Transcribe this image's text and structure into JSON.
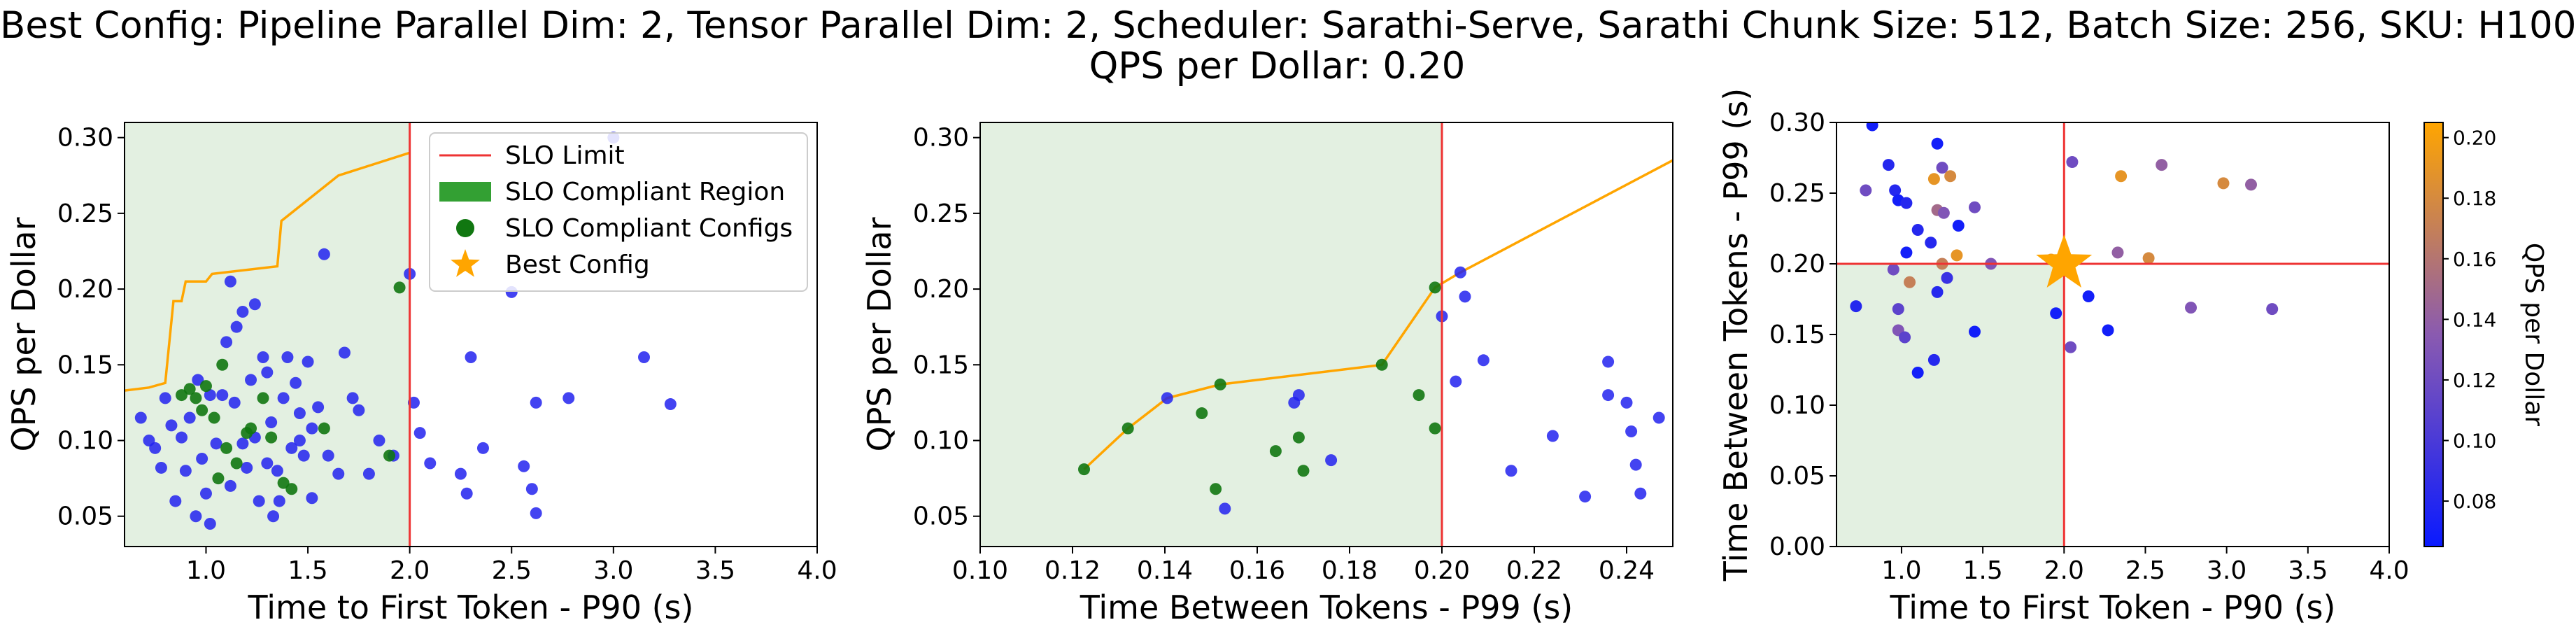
{
  "title": {
    "line1": "Best Config: Pipeline Parallel Dim: 2, Tensor Parallel Dim: 2, Scheduler: Sarathi-Serve, Sarathi Chunk Size: 512, Batch Size: 256, SKU: H100",
    "line2": "QPS per Dollar: 0.20"
  },
  "colors": {
    "slo_line": "#ee3333",
    "region": "#e3f0e1",
    "compliant": "#117711",
    "noncompliant": "#2222ee",
    "frontier": "#ffa500",
    "best": "#ffa500"
  },
  "chart_data": [
    {
      "type": "scatter",
      "xlabel": "Time to First Token - P90 (s)",
      "ylabel": "QPS per Dollar",
      "xlim": [
        0.6,
        4.0
      ],
      "ylim": [
        0.03,
        0.31
      ],
      "xticks": [
        "1.0",
        "1.5",
        "2.0",
        "2.5",
        "3.0",
        "3.5",
        "4.0"
      ],
      "xtick_values": [
        1.0,
        1.5,
        2.0,
        2.5,
        3.0,
        3.5,
        4.0
      ],
      "yticks": [
        "0.05",
        "0.10",
        "0.15",
        "0.20",
        "0.25",
        "0.30"
      ],
      "ytick_values": [
        0.05,
        0.1,
        0.15,
        0.2,
        0.25,
        0.3
      ],
      "slo_limit_x": 2.0,
      "legend": {
        "position": "upper-center",
        "entries": [
          "SLO Limit",
          "SLO Compliant Region",
          "SLO Compliant Configs",
          "Best Config"
        ]
      },
      "frontier": [
        [
          0.6,
          0.133
        ],
        [
          0.72,
          0.135
        ],
        [
          0.8,
          0.138
        ],
        [
          0.84,
          0.192
        ],
        [
          0.88,
          0.192
        ],
        [
          0.9,
          0.205
        ],
        [
          1.0,
          0.205
        ],
        [
          1.03,
          0.21
        ],
        [
          1.35,
          0.215
        ],
        [
          1.37,
          0.245
        ],
        [
          1.65,
          0.275
        ],
        [
          2.0,
          0.29
        ]
      ],
      "compliant": [
        [
          0.88,
          0.13
        ],
        [
          0.92,
          0.134
        ],
        [
          0.95,
          0.128
        ],
        [
          0.98,
          0.12
        ],
        [
          1.0,
          0.136
        ],
        [
          1.04,
          0.115
        ],
        [
          1.08,
          0.15
        ],
        [
          1.1,
          0.095
        ],
        [
          1.15,
          0.085
        ],
        [
          1.22,
          0.108
        ],
        [
          1.28,
          0.128
        ],
        [
          1.32,
          0.102
        ],
        [
          1.38,
          0.072
        ],
        [
          1.42,
          0.068
        ],
        [
          1.58,
          0.108
        ],
        [
          1.95,
          0.201
        ],
        [
          1.9,
          0.09
        ],
        [
          1.2,
          0.105
        ],
        [
          1.06,
          0.075
        ]
      ],
      "noncompliant": [
        [
          0.68,
          0.115
        ],
        [
          0.72,
          0.1
        ],
        [
          0.75,
          0.095
        ],
        [
          0.78,
          0.082
        ],
        [
          0.8,
          0.128
        ],
        [
          0.83,
          0.11
        ],
        [
          0.85,
          0.06
        ],
        [
          0.88,
          0.102
        ],
        [
          0.9,
          0.08
        ],
        [
          0.92,
          0.115
        ],
        [
          0.95,
          0.05
        ],
        [
          0.98,
          0.088
        ],
        [
          1.0,
          0.065
        ],
        [
          1.02,
          0.045
        ],
        [
          1.05,
          0.098
        ],
        [
          1.08,
          0.13
        ],
        [
          1.1,
          0.165
        ],
        [
          1.12,
          0.07
        ],
        [
          1.14,
          0.125
        ],
        [
          1.15,
          0.175
        ],
        [
          1.18,
          0.098
        ],
        [
          1.2,
          0.082
        ],
        [
          1.22,
          0.14
        ],
        [
          1.24,
          0.19
        ],
        [
          1.26,
          0.06
        ],
        [
          1.28,
          0.155
        ],
        [
          1.3,
          0.145
        ],
        [
          1.32,
          0.112
        ],
        [
          1.33,
          0.05
        ],
        [
          1.35,
          0.08
        ],
        [
          1.38,
          0.128
        ],
        [
          1.4,
          0.155
        ],
        [
          1.42,
          0.095
        ],
        [
          1.44,
          0.138
        ],
        [
          1.46,
          0.118
        ],
        [
          1.48,
          0.09
        ],
        [
          1.5,
          0.152
        ],
        [
          1.52,
          0.062
        ],
        [
          1.55,
          0.122
        ],
        [
          1.58,
          0.223
        ],
        [
          1.6,
          0.09
        ],
        [
          1.65,
          0.078
        ],
        [
          1.68,
          0.158
        ],
        [
          1.72,
          0.128
        ],
        [
          1.75,
          0.12
        ],
        [
          1.8,
          0.078
        ],
        [
          1.85,
          0.1
        ],
        [
          1.92,
          0.09
        ],
        [
          2.0,
          0.21
        ],
        [
          2.02,
          0.125
        ],
        [
          2.05,
          0.105
        ],
        [
          2.1,
          0.085
        ],
        [
          2.25,
          0.078
        ],
        [
          2.28,
          0.065
        ],
        [
          2.3,
          0.155
        ],
        [
          2.36,
          0.095
        ],
        [
          2.5,
          0.198
        ],
        [
          2.56,
          0.083
        ],
        [
          2.6,
          0.068
        ],
        [
          2.62,
          0.052
        ],
        [
          2.62,
          0.125
        ],
        [
          2.78,
          0.128
        ],
        [
          3.0,
          0.3
        ],
        [
          3.15,
          0.155
        ],
        [
          3.28,
          0.124
        ],
        [
          0.96,
          0.14
        ],
        [
          1.12,
          0.205
        ],
        [
          1.18,
          0.185
        ],
        [
          1.24,
          0.102
        ],
        [
          1.3,
          0.085
        ],
        [
          1.36,
          0.06
        ],
        [
          1.46,
          0.1
        ],
        [
          1.52,
          0.108
        ],
        [
          1.02,
          0.13
        ]
      ],
      "best": [
        2.0,
        0.2
      ]
    },
    {
      "type": "scatter",
      "xlabel": "Time Between Tokens - P99 (s)",
      "ylabel": "QPS per Dollar",
      "xlim": [
        0.1,
        0.25
      ],
      "ylim": [
        0.03,
        0.31
      ],
      "xticks": [
        "0.10",
        "0.12",
        "0.14",
        "0.16",
        "0.18",
        "0.20",
        "0.22",
        "0.24"
      ],
      "xtick_values": [
        0.1,
        0.12,
        0.14,
        0.16,
        0.18,
        0.2,
        0.22,
        0.24
      ],
      "yticks": [
        "0.05",
        "0.10",
        "0.15",
        "0.20",
        "0.25",
        "0.30"
      ],
      "ytick_values": [
        0.05,
        0.1,
        0.15,
        0.2,
        0.25,
        0.3
      ],
      "slo_limit_x": 0.2,
      "frontier": [
        [
          0.1225,
          0.081
        ],
        [
          0.132,
          0.108
        ],
        [
          0.1405,
          0.128
        ],
        [
          0.152,
          0.137
        ],
        [
          0.187,
          0.15
        ],
        [
          0.1985,
          0.201
        ],
        [
          0.204,
          0.211
        ],
        [
          0.25,
          0.285
        ]
      ],
      "compliant": [
        [
          0.1225,
          0.081
        ],
        [
          0.132,
          0.108
        ],
        [
          0.148,
          0.118
        ],
        [
          0.151,
          0.068
        ],
        [
          0.152,
          0.137
        ],
        [
          0.164,
          0.093
        ],
        [
          0.169,
          0.102
        ],
        [
          0.17,
          0.08
        ],
        [
          0.187,
          0.15
        ],
        [
          0.195,
          0.13
        ],
        [
          0.1985,
          0.201
        ],
        [
          0.1985,
          0.108
        ]
      ],
      "noncompliant": [
        [
          0.1405,
          0.128
        ],
        [
          0.153,
          0.055
        ],
        [
          0.168,
          0.125
        ],
        [
          0.169,
          0.13
        ],
        [
          0.176,
          0.087
        ],
        [
          0.2,
          0.182
        ],
        [
          0.203,
          0.139
        ],
        [
          0.204,
          0.211
        ],
        [
          0.205,
          0.195
        ],
        [
          0.209,
          0.153
        ],
        [
          0.215,
          0.08
        ],
        [
          0.224,
          0.103
        ],
        [
          0.231,
          0.063
        ],
        [
          0.236,
          0.152
        ],
        [
          0.236,
          0.13
        ],
        [
          0.24,
          0.125
        ],
        [
          0.241,
          0.106
        ],
        [
          0.242,
          0.084
        ],
        [
          0.243,
          0.065
        ],
        [
          0.247,
          0.115
        ]
      ],
      "best": [
        0.2,
        0.2
      ]
    },
    {
      "type": "scatter",
      "xlabel": "Time to First Token - P90 (s)",
      "ylabel": "Time Between Tokens - P99 (s)",
      "xlim": [
        0.6,
        4.0
      ],
      "ylim": [
        0.0,
        0.3
      ],
      "xticks": [
        "1.0",
        "1.5",
        "2.0",
        "2.5",
        "3.0",
        "3.5",
        "4.0"
      ],
      "xtick_values": [
        1.0,
        1.5,
        2.0,
        2.5,
        3.0,
        3.5,
        4.0
      ],
      "yticks": [
        "0.00",
        "0.05",
        "0.10",
        "0.15",
        "0.20",
        "0.25",
        "0.30"
      ],
      "ytick_values": [
        0.0,
        0.05,
        0.1,
        0.15,
        0.2,
        0.25,
        0.3
      ],
      "slo_limit_x": 2.0,
      "slo_limit_y": 0.2,
      "colorbar": {
        "label": "QPS per Dollar",
        "range": [
          0.065,
          0.205
        ],
        "ticks": [
          "0.08",
          "0.10",
          "0.12",
          "0.14",
          "0.16",
          "0.18",
          "0.20"
        ],
        "tick_values": [
          0.08,
          0.1,
          0.12,
          0.14,
          0.16,
          0.18,
          0.2
        ]
      },
      "points": [
        [
          0.82,
          0.298,
          0.07
        ],
        [
          0.92,
          0.27,
          0.08
        ],
        [
          0.78,
          0.252,
          0.12
        ],
        [
          0.96,
          0.252,
          0.08
        ],
        [
          0.98,
          0.245,
          0.07
        ],
        [
          1.03,
          0.243,
          0.08
        ],
        [
          1.22,
          0.285,
          0.07
        ],
        [
          1.25,
          0.268,
          0.12
        ],
        [
          1.2,
          0.26,
          0.19
        ],
        [
          1.3,
          0.262,
          0.18
        ],
        [
          1.22,
          0.238,
          0.15
        ],
        [
          1.26,
          0.236,
          0.13
        ],
        [
          1.45,
          0.24,
          0.12
        ],
        [
          1.35,
          0.227,
          0.07
        ],
        [
          1.1,
          0.224,
          0.08
        ],
        [
          1.18,
          0.215,
          0.08
        ],
        [
          1.34,
          0.206,
          0.19
        ],
        [
          1.25,
          0.2,
          0.17
        ],
        [
          1.55,
          0.2,
          0.13
        ],
        [
          1.92,
          0.203,
          0.19
        ],
        [
          2.05,
          0.272,
          0.12
        ],
        [
          2.35,
          0.262,
          0.19
        ],
        [
          2.6,
          0.27,
          0.14
        ],
        [
          2.98,
          0.257,
          0.18
        ],
        [
          3.15,
          0.256,
          0.14
        ],
        [
          2.33,
          0.208,
          0.14
        ],
        [
          2.52,
          0.204,
          0.18
        ],
        [
          0.95,
          0.196,
          0.12
        ],
        [
          1.05,
          0.187,
          0.17
        ],
        [
          1.22,
          0.18,
          0.08
        ],
        [
          2.15,
          0.177,
          0.07
        ],
        [
          0.72,
          0.17,
          0.08
        ],
        [
          0.98,
          0.168,
          0.11
        ],
        [
          2.78,
          0.169,
          0.13
        ],
        [
          3.28,
          0.168,
          0.12
        ],
        [
          1.95,
          0.165,
          0.07
        ],
        [
          0.98,
          0.153,
          0.13
        ],
        [
          1.02,
          0.148,
          0.11
        ],
        [
          1.45,
          0.152,
          0.07
        ],
        [
          2.27,
          0.153,
          0.07
        ],
        [
          2.04,
          0.141,
          0.12
        ],
        [
          1.2,
          0.132,
          0.08
        ],
        [
          1.1,
          0.123,
          0.07
        ],
        [
          1.03,
          0.208,
          0.07
        ],
        [
          1.28,
          0.19,
          0.09
        ]
      ],
      "best": [
        2.0,
        0.2
      ]
    }
  ]
}
